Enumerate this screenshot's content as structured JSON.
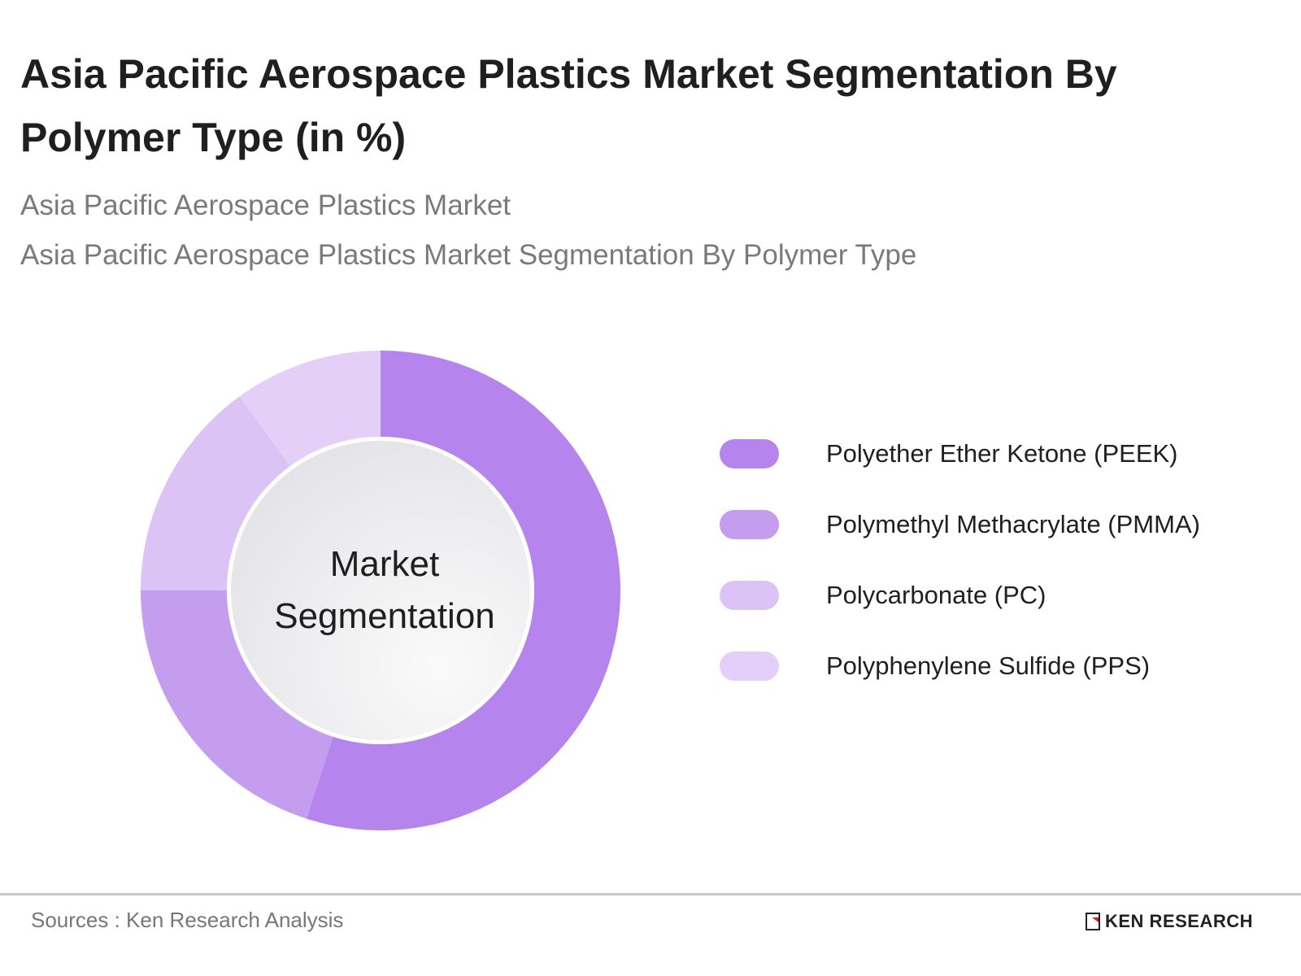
{
  "title": "Asia Pacific Aerospace Plastics Market Segmentation By Polymer Type (in %)",
  "subtitles": [
    "Asia Pacific Aerospace Plastics Market",
    "Asia Pacific Aerospace Plastics Market Segmentation By Polymer Type"
  ],
  "chart_data": {
    "type": "pie",
    "variant": "donut",
    "center_label": "Market Segmentation",
    "categories": [
      "Polyether Ether Ketone (PEEK)",
      "Polymethyl Methacrylate (PMMA)",
      "Polycarbonate (PC)",
      "Polyphenylene Sulfide (PPS)"
    ],
    "values": [
      55,
      20,
      15,
      10
    ],
    "colors": [
      "#b584ec",
      "#c59def",
      "#dcc3f6",
      "#e3cff8"
    ],
    "legend_position": "right"
  },
  "footer": {
    "source": "Sources : Ken Research Analysis",
    "logo": "KEN RESEARCH"
  }
}
